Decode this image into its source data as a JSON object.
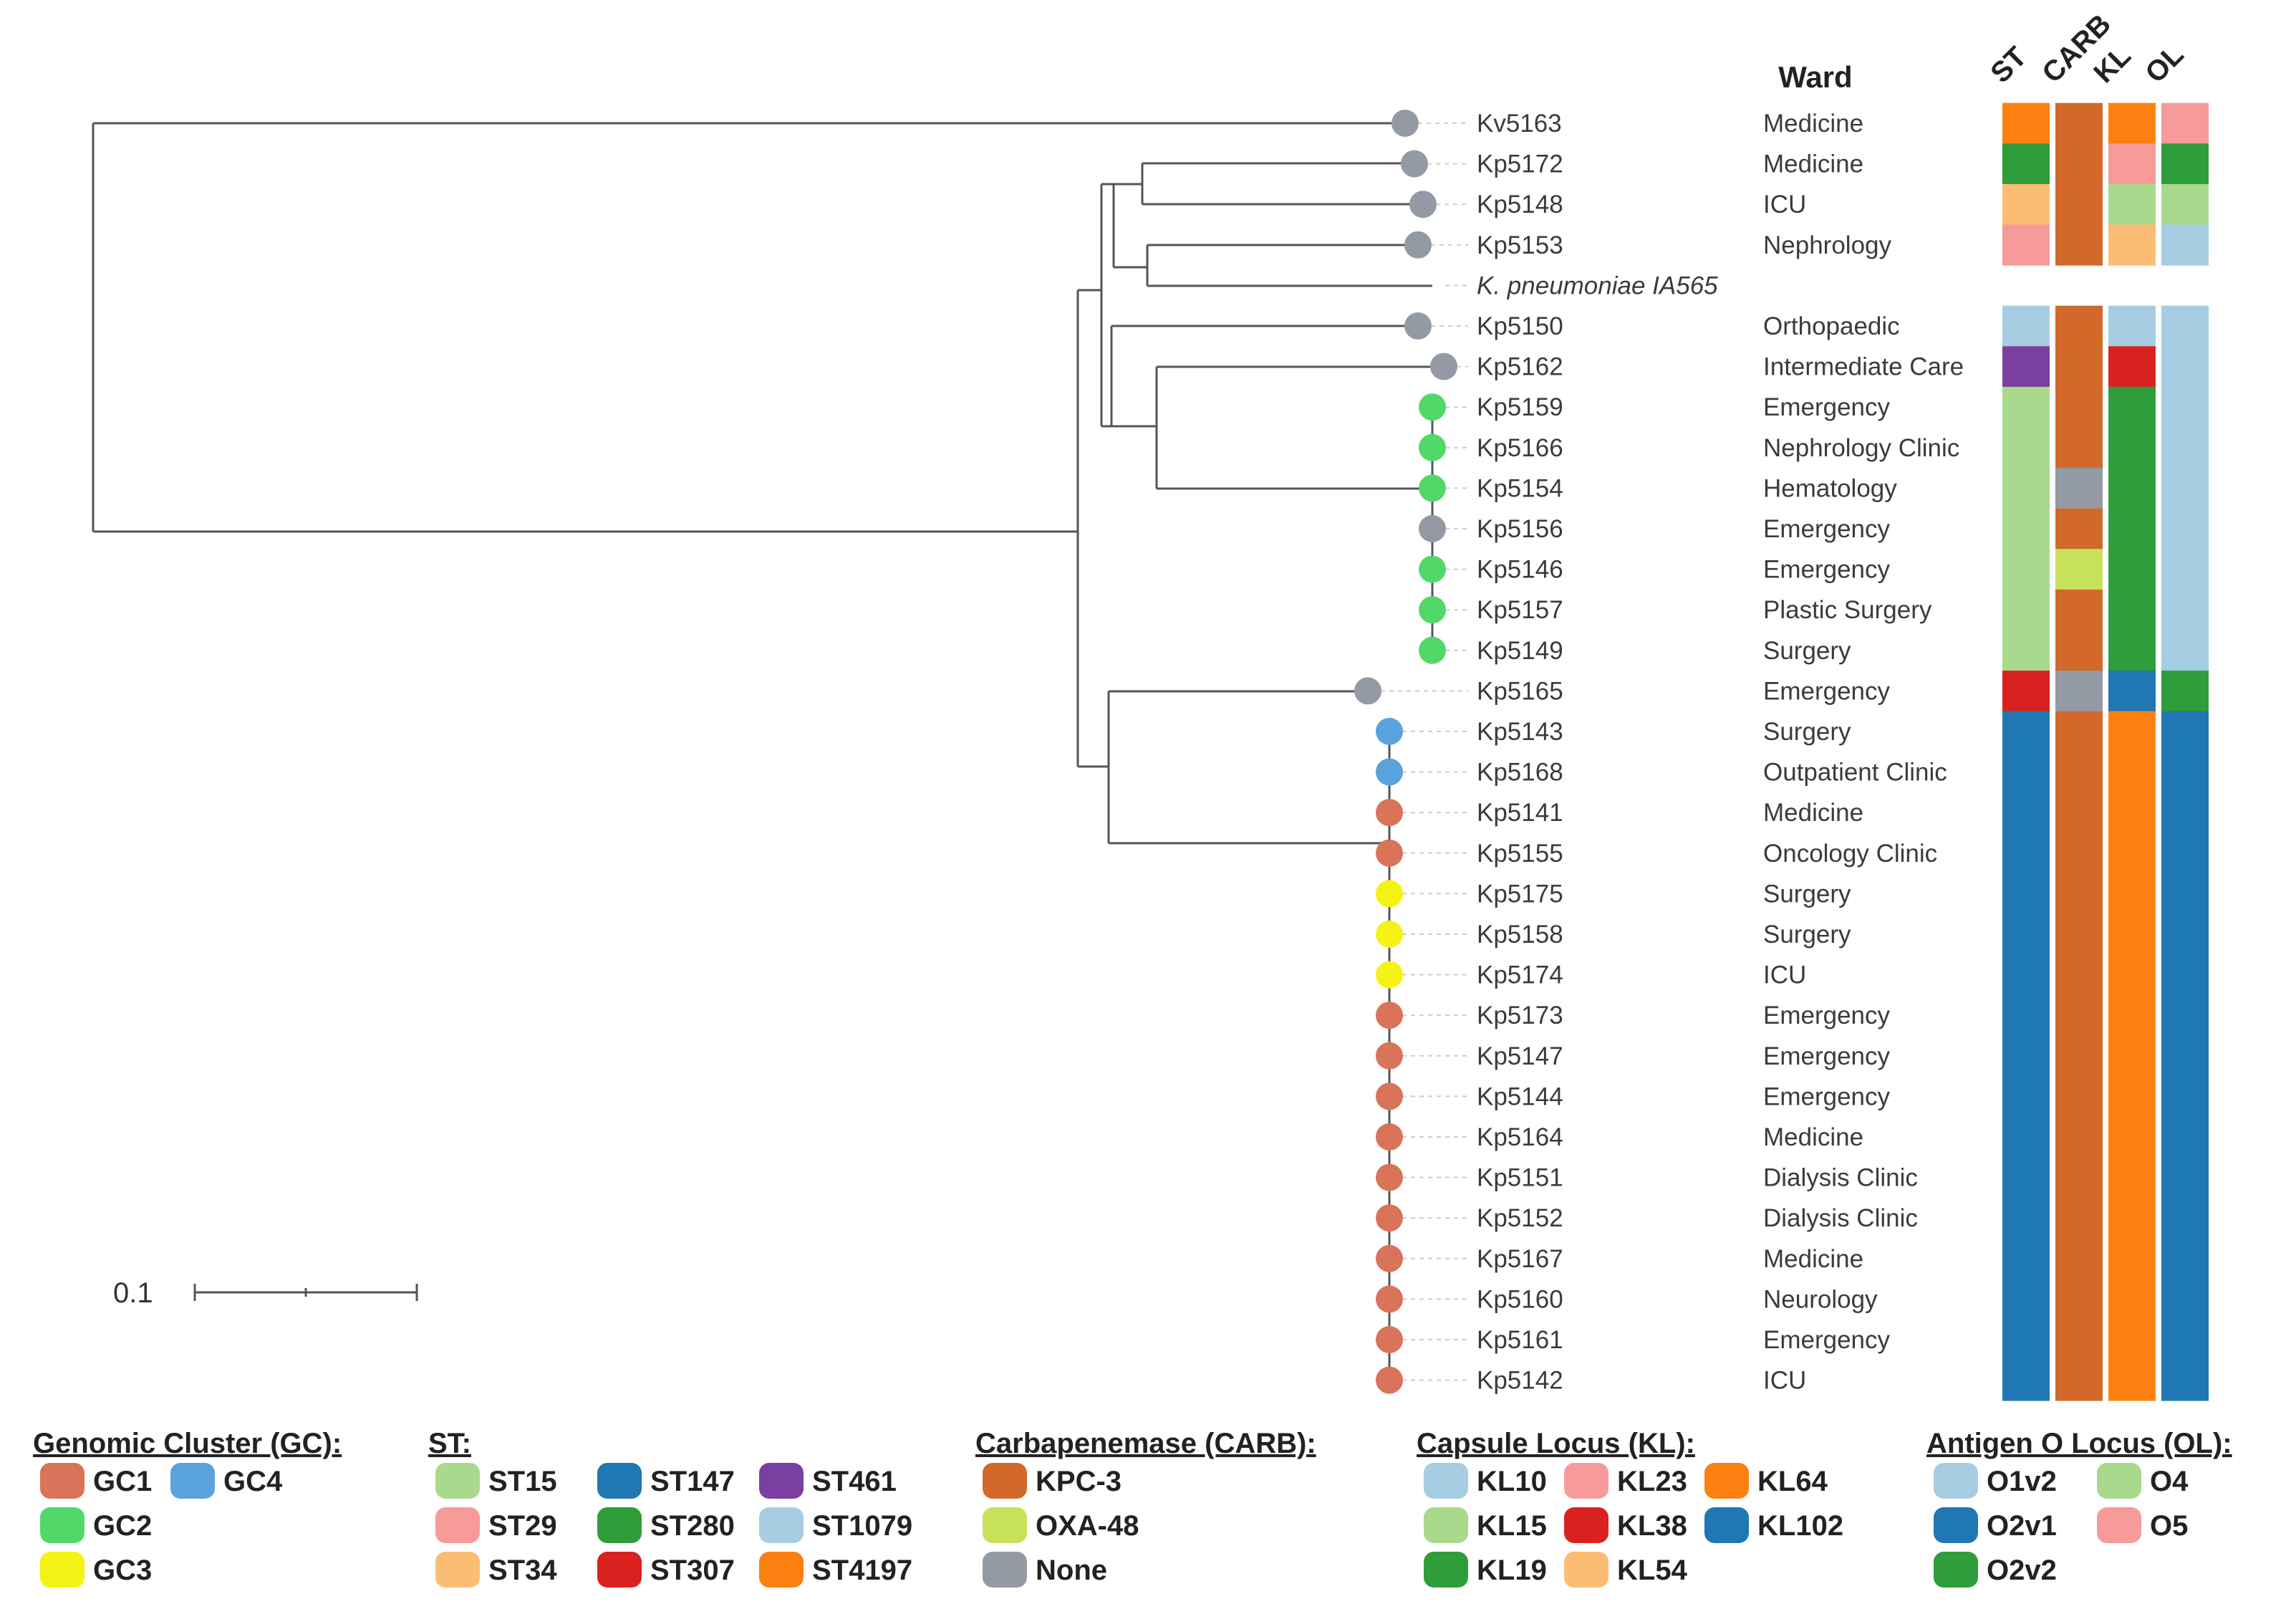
{
  "ward_header": "Ward",
  "column_headers": [
    "ST",
    "CARB",
    "KL",
    "OL"
  ],
  "scale_label": "0.1",
  "tips": [
    {
      "id": "Kv5163",
      "ward": "Medicine",
      "gc": "none",
      "st": "ST4197",
      "carb": "KPC-3",
      "kl": "KL64",
      "ol": "O5"
    },
    {
      "id": "Kp5172",
      "ward": "Medicine",
      "gc": "none",
      "st": "ST280",
      "carb": "KPC-3",
      "kl": "KL23",
      "ol": "O2v2"
    },
    {
      "id": "Kp5148",
      "ward": "ICU",
      "gc": "none",
      "st": "ST34",
      "carb": "KPC-3",
      "kl": "KL15",
      "ol": "O4"
    },
    {
      "id": "Kp5153",
      "ward": "Nephrology",
      "gc": "none",
      "st": "ST29",
      "carb": "KPC-3",
      "kl": "KL54",
      "ol": "O1v2"
    },
    {
      "id": "K. pneumoniae IA565",
      "ward": "",
      "gc": "",
      "st": "",
      "carb": "",
      "kl": "",
      "ol": "",
      "italic": true
    },
    {
      "id": "Kp5150",
      "ward": "Orthopaedic",
      "gc": "none",
      "st": "ST1079",
      "carb": "KPC-3",
      "kl": "KL10",
      "ol": "O1v2"
    },
    {
      "id": "Kp5162",
      "ward": "Intermediate Care",
      "gc": "none",
      "st": "ST461",
      "carb": "KPC-3",
      "kl": "KL38",
      "ol": "O1v2"
    },
    {
      "id": "Kp5159",
      "ward": "Emergency",
      "gc": "GC2",
      "st": "ST15",
      "carb": "KPC-3",
      "kl": "KL19",
      "ol": "O1v2"
    },
    {
      "id": "Kp5166",
      "ward": "Nephrology Clinic",
      "gc": "GC2",
      "st": "ST15",
      "carb": "KPC-3",
      "kl": "KL19",
      "ol": "O1v2"
    },
    {
      "id": "Kp5154",
      "ward": "Hematology",
      "gc": "GC2",
      "st": "ST15",
      "carb": "None",
      "kl": "KL19",
      "ol": "O1v2"
    },
    {
      "id": "Kp5156",
      "ward": "Emergency",
      "gc": "none",
      "st": "ST15",
      "carb": "KPC-3",
      "kl": "KL19",
      "ol": "O1v2"
    },
    {
      "id": "Kp5146",
      "ward": "Emergency",
      "gc": "GC2",
      "st": "ST15",
      "carb": "OXA-48",
      "kl": "KL19",
      "ol": "O1v2"
    },
    {
      "id": "Kp5157",
      "ward": "Plastic Surgery",
      "gc": "GC2",
      "st": "ST15",
      "carb": "KPC-3",
      "kl": "KL19",
      "ol": "O1v2"
    },
    {
      "id": "Kp5149",
      "ward": "Surgery",
      "gc": "GC2",
      "st": "ST15",
      "carb": "KPC-3",
      "kl": "KL19",
      "ol": "O1v2"
    },
    {
      "id": "Kp5165",
      "ward": "Emergency",
      "gc": "none",
      "st": "ST307",
      "carb": "None",
      "kl": "KL102",
      "ol": "O2v2"
    },
    {
      "id": "Kp5143",
      "ward": "Surgery",
      "gc": "GC4",
      "st": "ST147",
      "carb": "KPC-3",
      "kl": "KL64",
      "ol": "O2v1"
    },
    {
      "id": "Kp5168",
      "ward": "Outpatient Clinic",
      "gc": "GC4",
      "st": "ST147",
      "carb": "KPC-3",
      "kl": "KL64",
      "ol": "O2v1"
    },
    {
      "id": "Kp5141",
      "ward": "Medicine",
      "gc": "GC1",
      "st": "ST147",
      "carb": "KPC-3",
      "kl": "KL64",
      "ol": "O2v1"
    },
    {
      "id": "Kp5155",
      "ward": "Oncology Clinic",
      "gc": "GC1",
      "st": "ST147",
      "carb": "KPC-3",
      "kl": "KL64",
      "ol": "O2v1"
    },
    {
      "id": "Kp5175",
      "ward": "Surgery",
      "gc": "GC3",
      "st": "ST147",
      "carb": "KPC-3",
      "kl": "KL64",
      "ol": "O2v1"
    },
    {
      "id": "Kp5158",
      "ward": "Surgery",
      "gc": "GC3",
      "st": "ST147",
      "carb": "KPC-3",
      "kl": "KL64",
      "ol": "O2v1"
    },
    {
      "id": "Kp5174",
      "ward": "ICU",
      "gc": "GC3",
      "st": "ST147",
      "carb": "KPC-3",
      "kl": "KL64",
      "ol": "O2v1"
    },
    {
      "id": "Kp5173",
      "ward": "Emergency",
      "gc": "GC1",
      "st": "ST147",
      "carb": "KPC-3",
      "kl": "KL64",
      "ol": "O2v1"
    },
    {
      "id": "Kp5147",
      "ward": "Emergency",
      "gc": "GC1",
      "st": "ST147",
      "carb": "KPC-3",
      "kl": "KL64",
      "ol": "O2v1"
    },
    {
      "id": "Kp5144",
      "ward": "Emergency",
      "gc": "GC1",
      "st": "ST147",
      "carb": "KPC-3",
      "kl": "KL64",
      "ol": "O2v1"
    },
    {
      "id": "Kp5164",
      "ward": "Medicine",
      "gc": "GC1",
      "st": "ST147",
      "carb": "KPC-3",
      "kl": "KL64",
      "ol": "O2v1"
    },
    {
      "id": "Kp5151",
      "ward": "Dialysis Clinic",
      "gc": "GC1",
      "st": "ST147",
      "carb": "KPC-3",
      "kl": "KL64",
      "ol": "O2v1"
    },
    {
      "id": "Kp5152",
      "ward": "Dialysis Clinic",
      "gc": "GC1",
      "st": "ST147",
      "carb": "KPC-3",
      "kl": "KL64",
      "ol": "O2v1"
    },
    {
      "id": "Kp5167",
      "ward": "Medicine",
      "gc": "GC1",
      "st": "ST147",
      "carb": "KPC-3",
      "kl": "KL64",
      "ol": "O2v1"
    },
    {
      "id": "Kp5160",
      "ward": "Neurology",
      "gc": "GC1",
      "st": "ST147",
      "carb": "KPC-3",
      "kl": "KL64",
      "ol": "O2v1"
    },
    {
      "id": "Kp5161",
      "ward": "Emergency",
      "gc": "GC1",
      "st": "ST147",
      "carb": "KPC-3",
      "kl": "KL64",
      "ol": "O2v1"
    },
    {
      "id": "Kp5142",
      "ward": "ICU",
      "gc": "GC1",
      "st": "ST147",
      "carb": "KPC-3",
      "kl": "KL64",
      "ol": "O2v1"
    }
  ],
  "legends": [
    {
      "key": "gc",
      "title": "Genomic Cluster (GC):",
      "items": [
        {
          "label": "GC1",
          "color": "#d9735a"
        },
        {
          "label": "GC4",
          "color": "#5aa2dc"
        },
        {
          "label": "GC2",
          "color": "#52d869"
        },
        {
          "label": "GC3",
          "color": "#f5f316"
        }
      ]
    },
    {
      "key": "st",
      "title": "ST:",
      "items": [
        {
          "label": "ST15",
          "color": "#a9d98c"
        },
        {
          "label": "ST147",
          "color": "#1f77b4"
        },
        {
          "label": "ST461",
          "color": "#7a3fa0"
        },
        {
          "label": "ST29",
          "color": "#f79a9a"
        },
        {
          "label": "ST280",
          "color": "#2e9d3a"
        },
        {
          "label": "ST1079",
          "color": "#a6cde2"
        },
        {
          "label": "ST34",
          "color": "#fbbd74"
        },
        {
          "label": "ST307",
          "color": "#d9221f"
        },
        {
          "label": "ST4197",
          "color": "#fb8010"
        }
      ]
    },
    {
      "key": "carb",
      "title": "Carbapenemase (CARB):",
      "items": [
        {
          "label": "KPC-3",
          "color": "#d2692a"
        },
        {
          "label": "OXA-48",
          "color": "#c7e25a"
        },
        {
          "label": "None",
          "color": "#939aa3"
        }
      ]
    },
    {
      "key": "kl",
      "title": "Capsule Locus (KL):",
      "items": [
        {
          "label": "KL10",
          "color": "#a6cde2"
        },
        {
          "label": "KL23",
          "color": "#f79a9a"
        },
        {
          "label": "KL64",
          "color": "#fb8010"
        },
        {
          "label": "KL15",
          "color": "#a9d98c"
        },
        {
          "label": "KL38",
          "color": "#d9221f"
        },
        {
          "label": "KL102",
          "color": "#1f77b4"
        },
        {
          "label": "KL19",
          "color": "#2e9d3a"
        },
        {
          "label": "KL54",
          "color": "#fbbd74"
        }
      ]
    },
    {
      "key": "ol",
      "title": "Antigen O Locus (OL):",
      "items": [
        {
          "label": "O1v2",
          "color": "#a6cde2"
        },
        {
          "label": "O4",
          "color": "#a9d98c"
        },
        {
          "label": "O2v1",
          "color": "#1f77b4"
        },
        {
          "label": "O5",
          "color": "#f79a9a"
        },
        {
          "label": "O2v2",
          "color": "#2e9d3a"
        }
      ]
    }
  ],
  "none_node_color": "#939aa3",
  "line_color": "#555555"
}
